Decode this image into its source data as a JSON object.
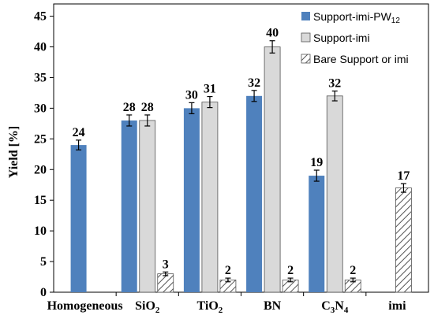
{
  "chart_data": {
    "type": "bar",
    "ylabel": "Yield [%]",
    "ylim": [
      0,
      47
    ],
    "yticks": [
      0,
      5,
      10,
      15,
      20,
      25,
      30,
      35,
      40,
      45
    ],
    "grid": false,
    "legend_position": "top-right",
    "categories": [
      "Homogeneous",
      "SiO2",
      "TiO2",
      "BN",
      "C3N4",
      "imi"
    ],
    "category_labels": [
      {
        "text": "Homogeneous",
        "sub": ""
      },
      {
        "text": "SiO",
        "sub": "2"
      },
      {
        "text": "TiO",
        "sub": "2"
      },
      {
        "text": "BN",
        "sub": ""
      },
      {
        "text": "C",
        "sub": "3",
        "text2": "N",
        "sub2": "4"
      },
      {
        "text": "imi",
        "sub": ""
      }
    ],
    "series": [
      {
        "name": "Support-imi-PW12",
        "legend_text": "Support-imi-PW",
        "legend_sub": "12",
        "color": "#4f81bd",
        "pattern": "solid",
        "values": [
          24,
          28,
          30,
          32,
          19,
          null
        ],
        "errors": [
          0.8,
          0.9,
          0.9,
          0.9,
          0.9,
          null
        ]
      },
      {
        "name": "Support-imi",
        "legend_text": "Support-imi",
        "legend_sub": "",
        "color": "#d9d9d9",
        "pattern": "solid",
        "values": [
          null,
          28,
          31,
          40,
          32,
          null
        ],
        "errors": [
          null,
          0.9,
          0.9,
          1.0,
          0.8,
          null
        ]
      },
      {
        "name": "Bare Support or imi",
        "legend_text": "Bare Support or imi",
        "legend_sub": "",
        "color": "#ffffff",
        "pattern": "hatch",
        "values": [
          null,
          3,
          2,
          2,
          2,
          17
        ],
        "errors": [
          null,
          0.3,
          0.3,
          0.3,
          0.3,
          0.7
        ]
      }
    ],
    "data_labels": [
      [
        24,
        28,
        30,
        32,
        19,
        null
      ],
      [
        null,
        28,
        31,
        40,
        32,
        null
      ],
      [
        null,
        3,
        2,
        2,
        2,
        17
      ]
    ]
  }
}
